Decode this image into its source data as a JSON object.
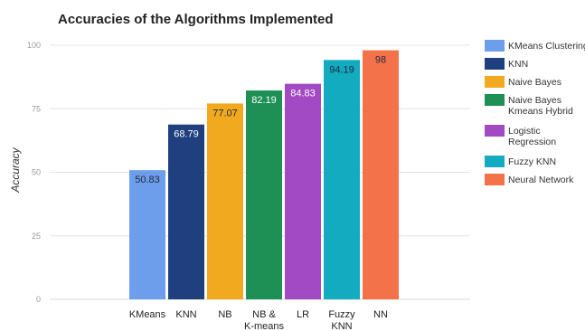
{
  "chart_data": {
    "type": "bar",
    "title": "Accuracies of the Algorithms Implemented",
    "ylabel": "Accuracy",
    "xlabel": "",
    "ylim": [
      0,
      100
    ],
    "yticks": [
      "0",
      "25",
      "50",
      "75",
      "100"
    ],
    "grid": true,
    "legend_position": "right",
    "series": [
      {
        "name": "KMeans Clustering",
        "category": [
          "KMeans"
        ],
        "value": 50.83,
        "label": "50.83",
        "color": "#6d9eeb"
      },
      {
        "name": "KNN",
        "category": [
          "KNN"
        ],
        "value": 68.79,
        "label": "68.79",
        "color": "#1f3f7f"
      },
      {
        "name": "Naive Bayes",
        "category": [
          "NB"
        ],
        "value": 77.07,
        "label": "77.07",
        "color": "#f1a91f"
      },
      {
        "name": "Naive Bayes Kmeans Hybrid",
        "category": [
          "NB &",
          "K-means"
        ],
        "value": 82.19,
        "label": "82.19",
        "color": "#1e8f55"
      },
      {
        "name": "Logistic Regression",
        "category": [
          "LR"
        ],
        "value": 84.83,
        "label": "84.83",
        "color": "#a24ac3"
      },
      {
        "name": "Fuzzy KNN",
        "category": [
          "Fuzzy",
          "KNN"
        ],
        "value": 94.19,
        "label": "94.19",
        "color": "#12abc0"
      },
      {
        "name": "Neural Network",
        "category": [
          "NN"
        ],
        "value": 98,
        "label": "98",
        "color": "#f47249"
      }
    ],
    "legend": [
      [
        "KMeans Clustering"
      ],
      [
        "KNN"
      ],
      [
        "Naive Bayes"
      ],
      [
        "Naive Bayes",
        "Kmeans Hybrid"
      ],
      [
        "Logistic",
        "Regression"
      ],
      [
        "Fuzzy KNN"
      ],
      [
        "Neural Network"
      ]
    ]
  }
}
